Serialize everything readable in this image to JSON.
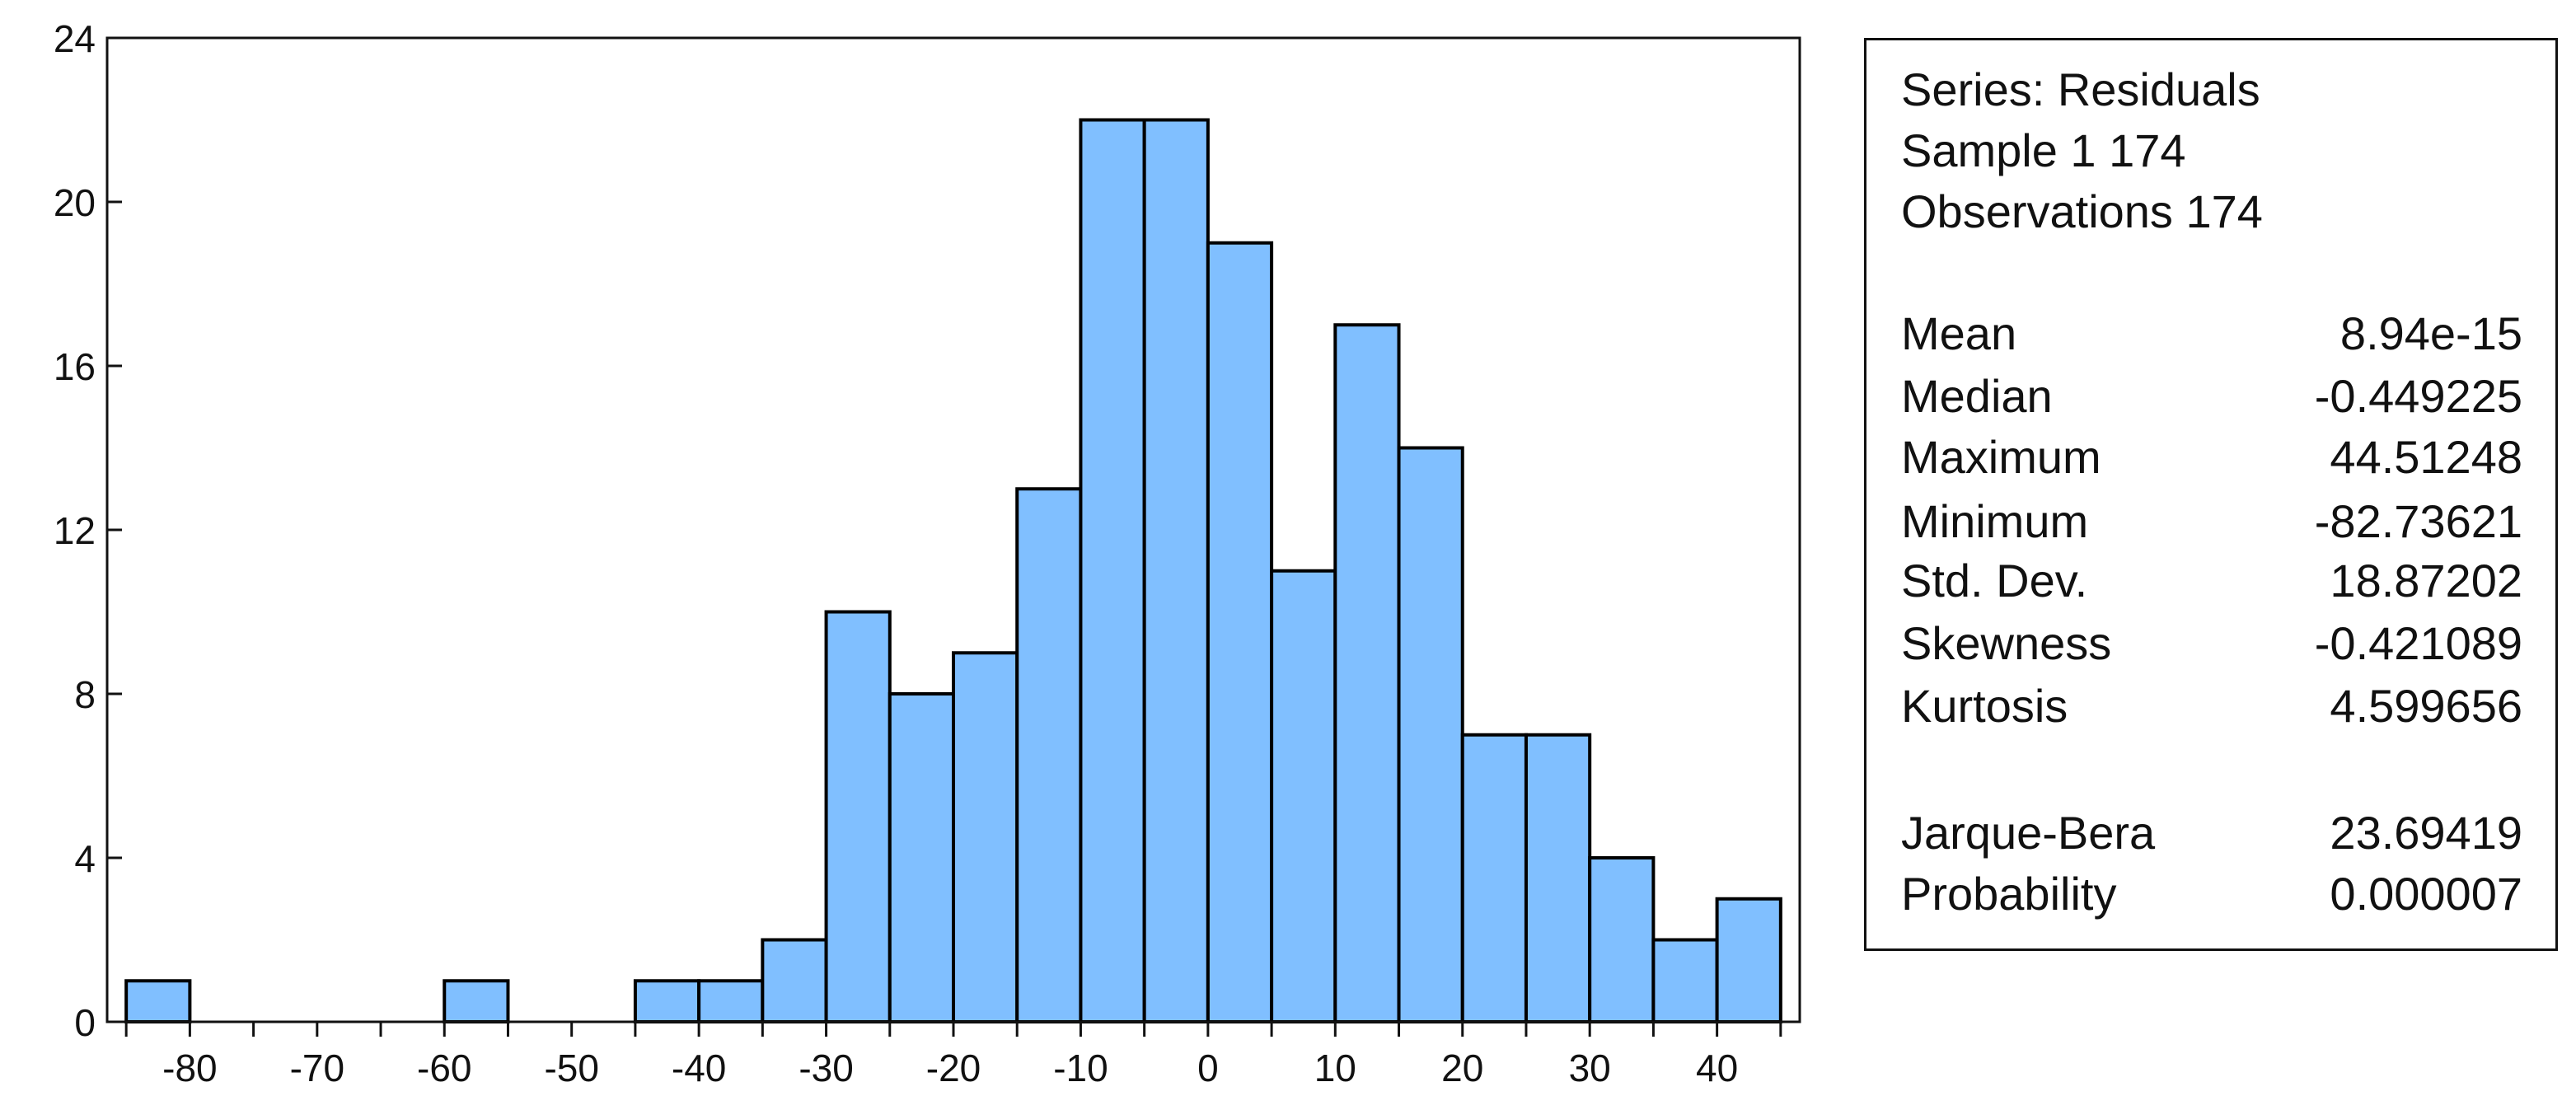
{
  "chart_data": {
    "type": "bar",
    "bin_width": 5,
    "bins_left_edge": [
      -85,
      -80,
      -75,
      -70,
      -65,
      -60,
      -55,
      -50,
      -45,
      -40,
      -35,
      -30,
      -25,
      -20,
      -15,
      -10,
      -5,
      0,
      5,
      10,
      15,
      20,
      25,
      30,
      35,
      40
    ],
    "values": [
      1,
      0,
      0,
      0,
      0,
      1,
      0,
      0,
      1,
      1,
      2,
      10,
      8,
      9,
      13,
      22,
      22,
      19,
      11,
      17,
      14,
      7,
      7,
      4,
      2,
      3
    ],
    "xlim": [
      -86.5,
      46.5
    ],
    "ylim": [
      0,
      24
    ],
    "yticks": [
      0,
      4,
      8,
      12,
      16,
      20,
      24
    ],
    "xtick_labels": [
      -80,
      -70,
      -60,
      -50,
      -40,
      -30,
      -20,
      -10,
      0,
      10,
      20,
      30,
      40
    ],
    "minor_xticks": [
      -85,
      -75,
      -65,
      -55,
      -45,
      -35,
      -25,
      -15,
      -5,
      5,
      15,
      25,
      35,
      45
    ],
    "bar_color": "#80bfff",
    "edge_color": "#000000",
    "grid": false
  },
  "stats": {
    "series": "Series: Residuals",
    "sample": "Sample 1 174",
    "observations": "Observations 174",
    "rows": [
      {
        "label": "Mean",
        "value": "8.94e-15"
      },
      {
        "label": "Median",
        "value": "-0.449225"
      },
      {
        "label": "Maximum",
        "value": "44.51248"
      },
      {
        "label": "Minimum",
        "value": "-82.73621"
      },
      {
        "label": "Std. Dev.",
        "value": "18.87202"
      },
      {
        "label": "Skewness",
        "value": "-0.421089"
      },
      {
        "label": "Kurtosis",
        "value": "4.599656"
      }
    ],
    "tests": [
      {
        "label": "Jarque-Bera",
        "value": "23.69419"
      },
      {
        "label": "Probability",
        "value": "0.000007"
      }
    ]
  }
}
